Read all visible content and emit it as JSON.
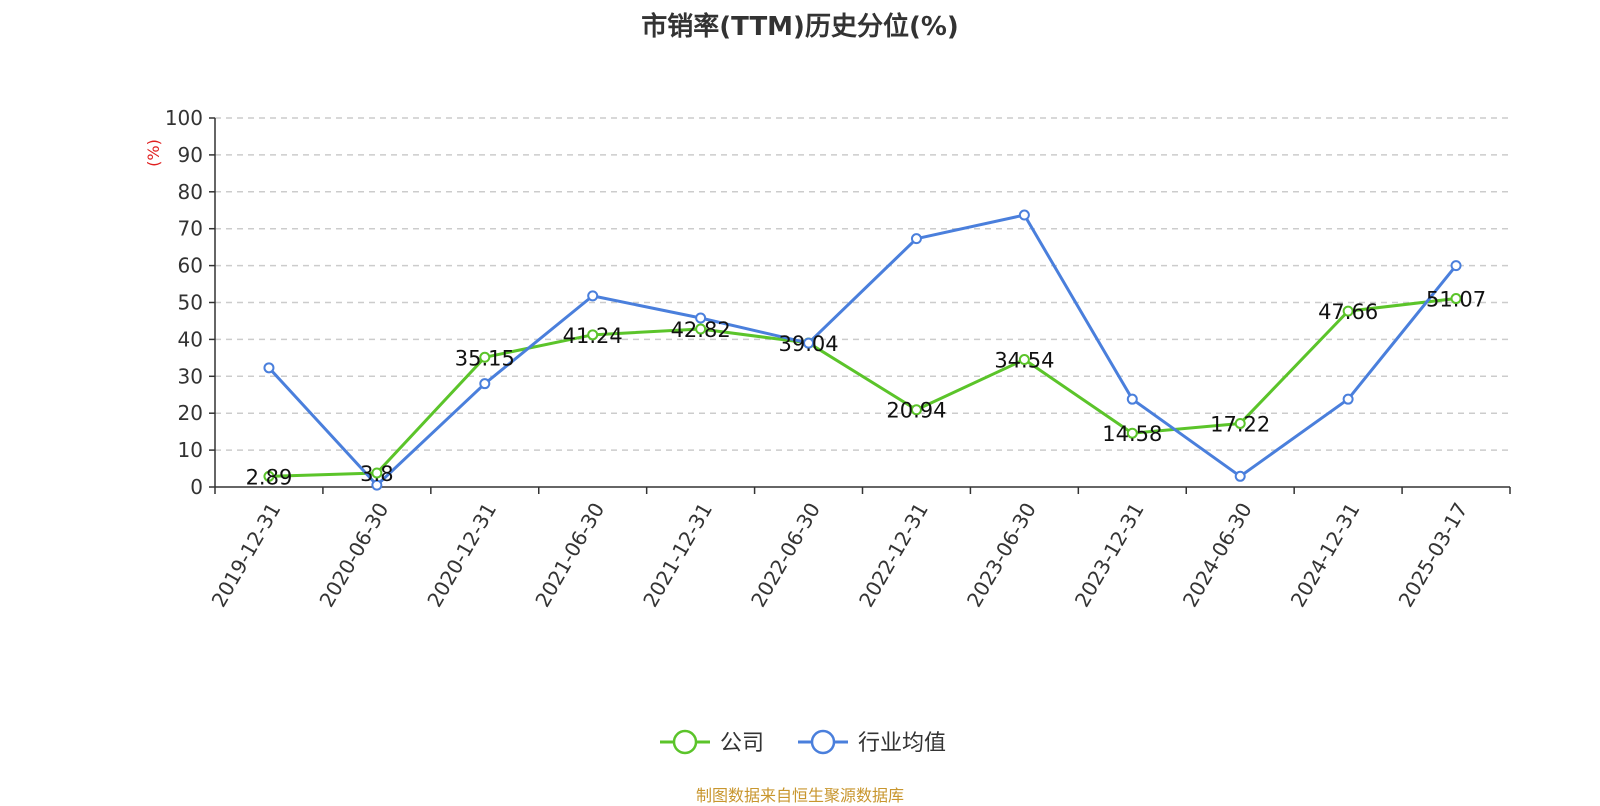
{
  "chart_data": {
    "type": "line",
    "title": "市销率(TTM)历史分位(%)",
    "ylabel": "(%)",
    "ylim": [
      0,
      100
    ],
    "yticks": [
      0,
      10,
      20,
      30,
      40,
      50,
      60,
      70,
      80,
      90,
      100
    ],
    "grid": true,
    "legend_position": "bottom",
    "categories": [
      "2019-12-31",
      "2020-06-30",
      "2020-12-31",
      "2021-06-30",
      "2021-12-31",
      "2022-06-30",
      "2022-12-31",
      "2023-06-30",
      "2023-12-31",
      "2024-06-30",
      "2024-12-31",
      "2025-03-17"
    ],
    "series": [
      {
        "name": "公司",
        "color": "#5bc42a",
        "values": [
          2.89,
          3.8,
          35.15,
          41.24,
          42.82,
          39.04,
          20.94,
          34.54,
          14.58,
          17.22,
          47.66,
          51.07
        ],
        "show_labels": true
      },
      {
        "name": "行业均值",
        "color": "#4a7fdc",
        "values": [
          32.3,
          0.5,
          28.0,
          51.8,
          45.8,
          39.0,
          67.3,
          73.7,
          23.8,
          2.9,
          23.8,
          60.0
        ],
        "show_labels": false
      }
    ]
  },
  "source": "制图数据来自恒生聚源数据库"
}
